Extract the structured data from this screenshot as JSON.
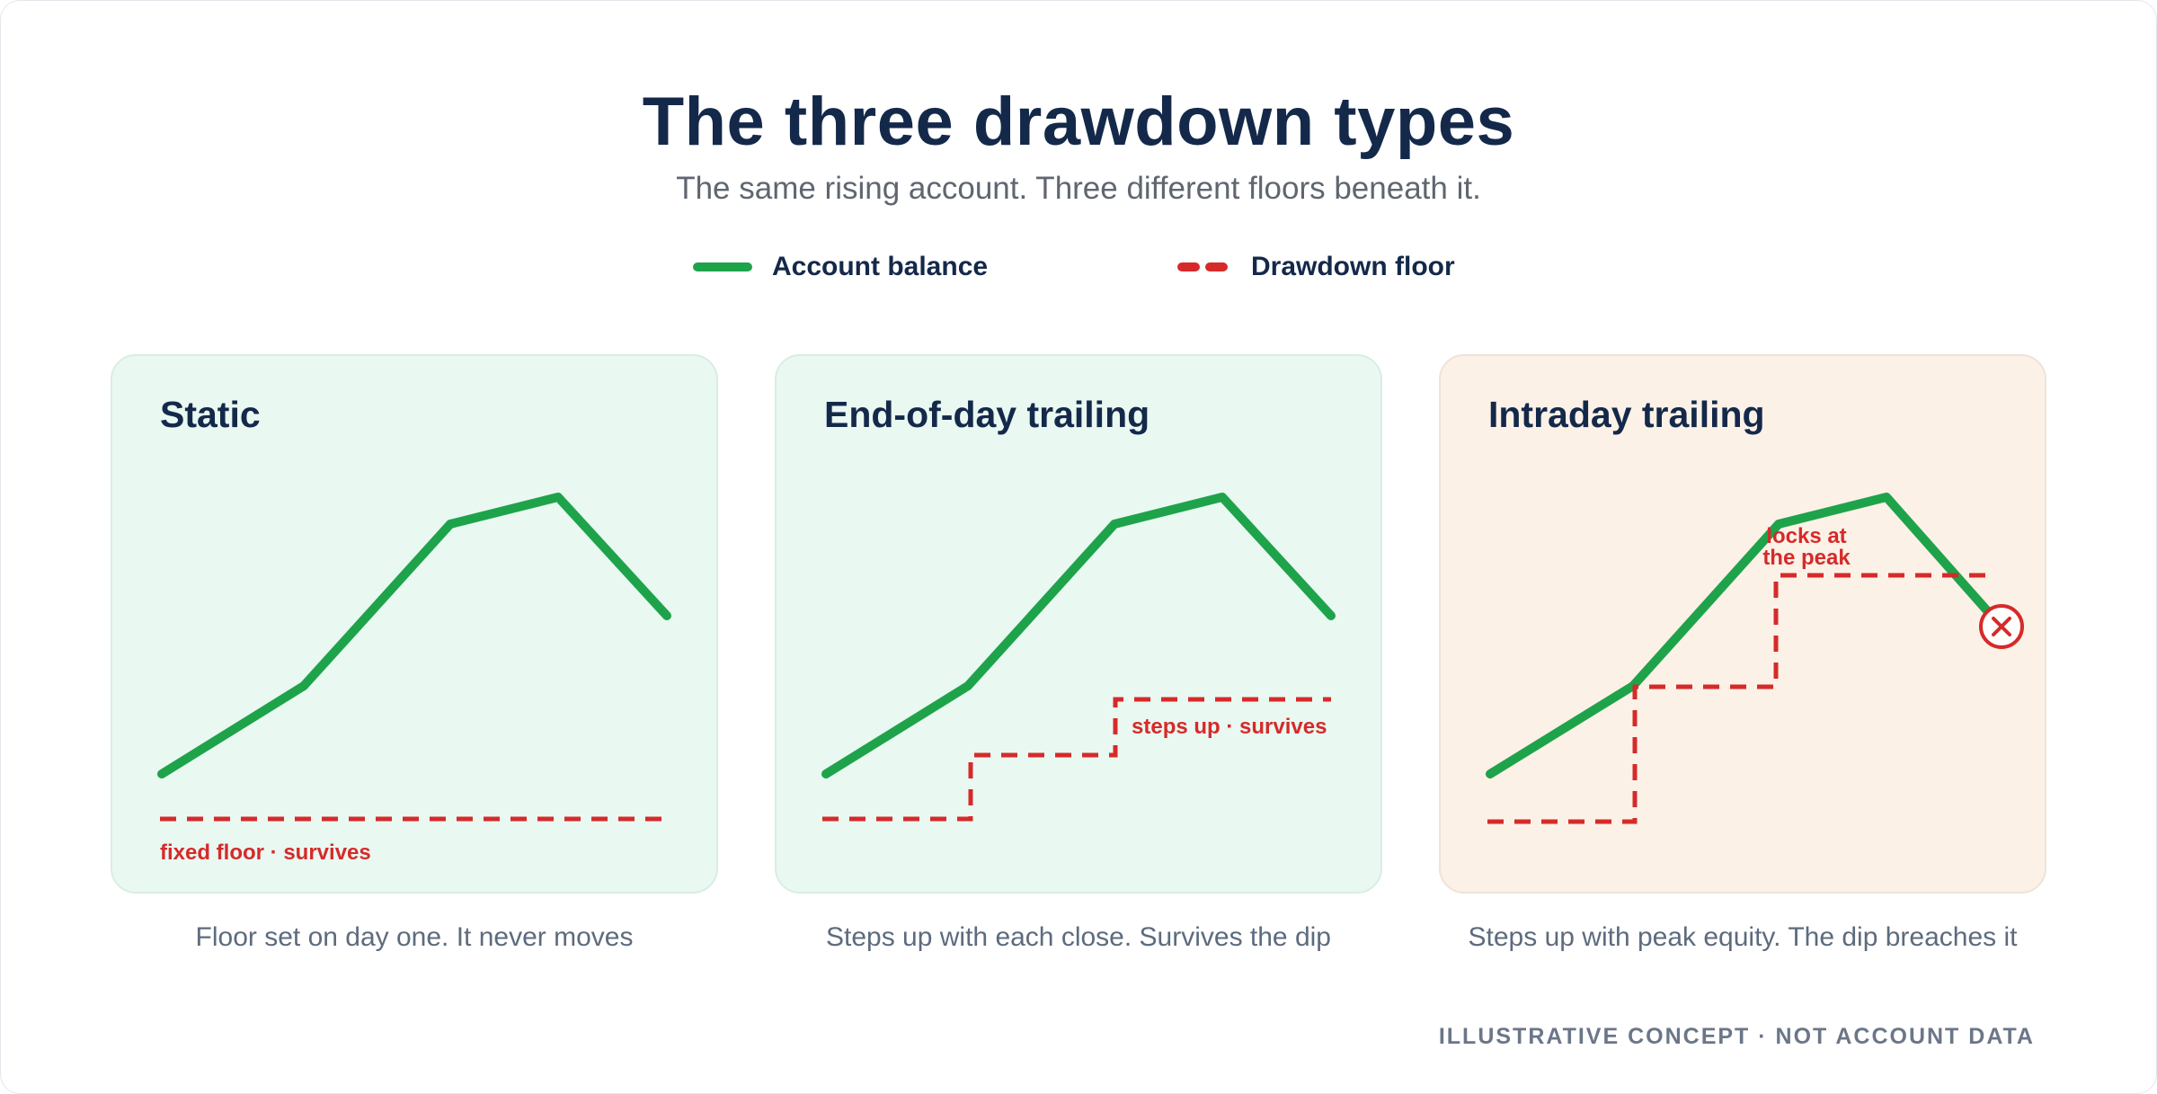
{
  "title": "The three drawdown types",
  "subtitle": "The same rising account. Three different floors beneath it.",
  "legend": {
    "balance": "Account balance",
    "floor": "Drawdown floor"
  },
  "colors": {
    "balance": "#1ea34b",
    "floor": "#d62a2a",
    "title": "#14294a",
    "safe_panel": "#e9f8f1",
    "breach_panel": "#fcf1e7"
  },
  "panels": [
    {
      "title": "Static",
      "annotation": "fixed floor · survives",
      "caption": "Floor set on day one. It never moves"
    },
    {
      "title": "End-of-day trailing",
      "annotation": "steps up · survives",
      "caption": "Steps up with each close. Survives the dip"
    },
    {
      "title": "Intraday trailing",
      "annotation_line1": "locks at",
      "annotation_line2": "the peak",
      "caption": "Steps up with peak equity. The dip breaches it",
      "breach_icon": "x-circle-icon"
    }
  ],
  "footer": "ILLUSTRATIVE CONCEPT · NOT ACCOUNT DATA"
}
